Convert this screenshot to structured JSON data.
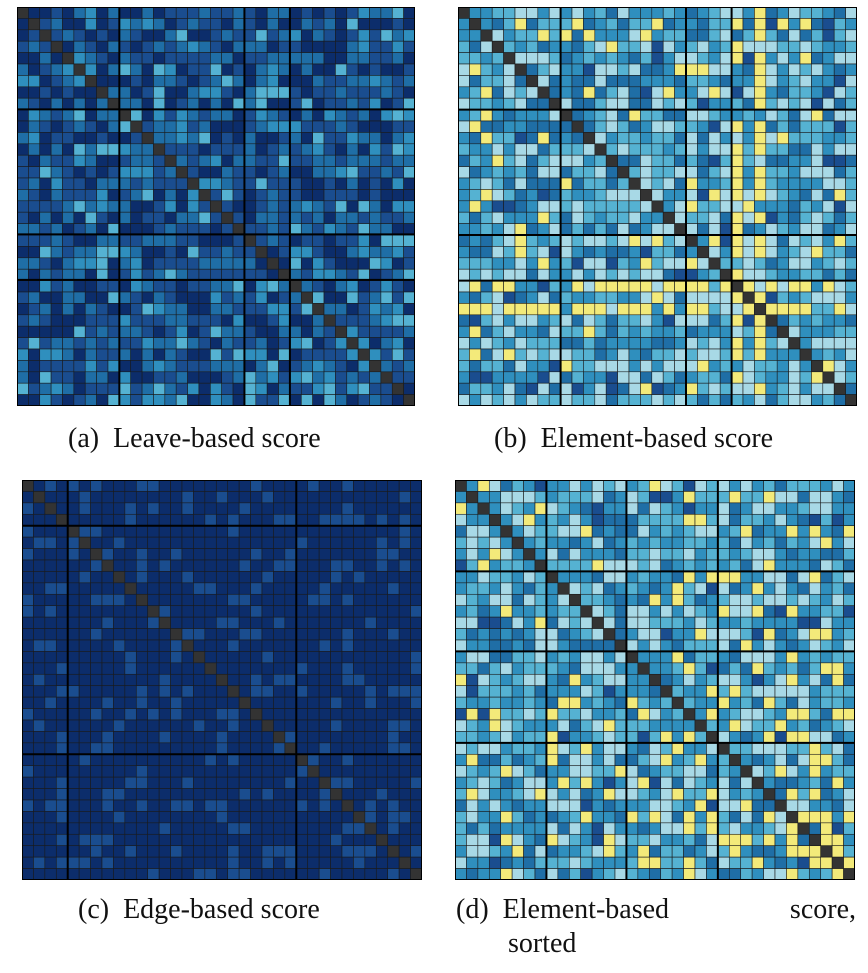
{
  "colors": {
    "very_low": "#0c2d6b",
    "low": "#1a4d8f",
    "mid_low": "#1f6ea6",
    "mid": "#2f8fbe",
    "mid_high": "#55b2d2",
    "high": "#a8d9e6",
    "max": "#f3ea7a",
    "diagonal": "#333333",
    "grid": "#1a1a1a"
  },
  "chart_data": [
    {
      "type": "heatmap",
      "id": "a",
      "tag": "(a)",
      "title": "Leave-based score",
      "size": 35,
      "group_boundaries": [
        9,
        20,
        24
      ],
      "palette": [
        "very_low",
        "low",
        "mid_low",
        "mid",
        "mid_high"
      ],
      "weights": [
        0.28,
        0.3,
        0.24,
        0.12,
        0.06
      ],
      "seed": 11,
      "diagonal_color": "diagonal"
    },
    {
      "type": "heatmap",
      "id": "b",
      "tag": "(b)",
      "title": "Element-based score",
      "size": 35,
      "group_boundaries": [
        9,
        20,
        24
      ],
      "palette": [
        "low",
        "mid_low",
        "mid",
        "mid_high",
        "high",
        "max"
      ],
      "weights": [
        0.04,
        0.14,
        0.26,
        0.24,
        0.25,
        0.07
      ],
      "bright_columns": [
        24,
        26
      ],
      "seed": 23,
      "diagonal_color": "diagonal"
    },
    {
      "type": "heatmap",
      "id": "c",
      "tag": "(c)",
      "title": "Edge-based score",
      "size": 35,
      "group_boundaries": [
        4,
        24
      ],
      "palette": [
        "very_low",
        "low"
      ],
      "weights": [
        0.8,
        0.2
      ],
      "seed": 7,
      "diagonal_color": "diagonal"
    },
    {
      "type": "heatmap",
      "id": "d",
      "tag": "(d)",
      "title": "Element-based score, sorted",
      "title_row1": "Element-based",
      "title_row1_end": "score,",
      "title_row2": "sorted",
      "size": 35,
      "group_boundaries": [
        8,
        15,
        23
      ],
      "palette": [
        "low",
        "mid_low",
        "mid",
        "mid_high",
        "high",
        "max"
      ],
      "weights": [
        0.04,
        0.14,
        0.26,
        0.24,
        0.25,
        0.07
      ],
      "sorted": true,
      "seed": 41,
      "diagonal_color": "diagonal"
    }
  ]
}
